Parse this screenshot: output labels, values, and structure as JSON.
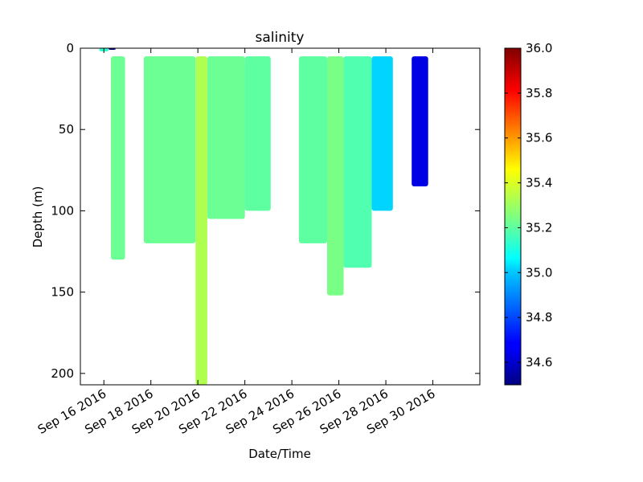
{
  "chart_data": {
    "type": "scatter",
    "title": "salinity",
    "xlabel": "Date/Time",
    "ylabel": "Depth (m)",
    "x_tick_labels": [
      "Sep 16 2016",
      "Sep 18 2016",
      "Sep 20 2016",
      "Sep 22 2016",
      "Sep 24 2016",
      "Sep 26 2016",
      "Sep 28 2016",
      "Sep 30 2016"
    ],
    "x_ticks_day": [
      16,
      18,
      20,
      22,
      24,
      26,
      28,
      30
    ],
    "xlim_day": [
      15.0,
      32.0
    ],
    "y_ticks": [
      0,
      50,
      100,
      150,
      200
    ],
    "ylim": [
      0,
      207
    ],
    "y_inverted": true,
    "grid": false,
    "colormap": "jet",
    "colorbar": {
      "ticks": [
        34.6,
        34.8,
        35.0,
        35.2,
        35.4,
        35.6,
        35.8,
        36.0
      ],
      "range": [
        34.5,
        36.0
      ]
    },
    "profiles": [
      {
        "start_day": 15.8,
        "end_day": 16.2,
        "min_depth": 0,
        "max_depth": 2,
        "salinity": 35.13
      },
      {
        "start_day": 16.2,
        "end_day": 16.5,
        "min_depth": 0,
        "max_depth": 1,
        "salinity": 34.5
      },
      {
        "start_day": 16.3,
        "end_day": 16.9,
        "min_depth": 5,
        "max_depth": 130,
        "salinity": 35.22
      },
      {
        "start_day": 17.7,
        "end_day": 19.9,
        "min_depth": 5,
        "max_depth": 120,
        "salinity": 35.22
      },
      {
        "start_day": 19.9,
        "end_day": 20.4,
        "min_depth": 5,
        "max_depth": 207,
        "salinity": 35.32
      },
      {
        "start_day": 20.4,
        "end_day": 22.0,
        "min_depth": 5,
        "max_depth": 105,
        "salinity": 35.22
      },
      {
        "start_day": 22.0,
        "end_day": 23.1,
        "min_depth": 5,
        "max_depth": 100,
        "salinity": 35.2
      },
      {
        "start_day": 24.3,
        "end_day": 25.5,
        "min_depth": 5,
        "max_depth": 120,
        "salinity": 35.2
      },
      {
        "start_day": 25.5,
        "end_day": 26.2,
        "min_depth": 5,
        "max_depth": 152,
        "salinity": 35.24
      },
      {
        "start_day": 26.2,
        "end_day": 27.4,
        "min_depth": 5,
        "max_depth": 135,
        "salinity": 35.18
      },
      {
        "start_day": 27.4,
        "end_day": 28.3,
        "min_depth": 5,
        "max_depth": 100,
        "salinity": 35.0
      },
      {
        "start_day": 29.1,
        "end_day": 29.8,
        "min_depth": 5,
        "max_depth": 85,
        "salinity": 34.65
      }
    ]
  }
}
